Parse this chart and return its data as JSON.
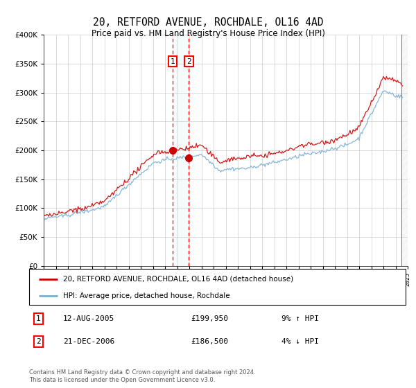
{
  "title": "20, RETFORD AVENUE, ROCHDALE, OL16 4AD",
  "subtitle": "Price paid vs. HM Land Registry's House Price Index (HPI)",
  "ylim": [
    0,
    400000
  ],
  "yticks": [
    0,
    50000,
    100000,
    150000,
    200000,
    250000,
    300000,
    350000,
    400000
  ],
  "legend_line1": "20, RETFORD AVENUE, ROCHDALE, OL16 4AD (detached house)",
  "legend_line2": "HPI: Average price, detached house, Rochdale",
  "transaction1_date": "12-AUG-2005",
  "transaction1_price": "£199,950",
  "transaction1_hpi": "9% ↑ HPI",
  "transaction2_date": "21-DEC-2006",
  "transaction2_price": "£186,500",
  "transaction2_hpi": "4% ↓ HPI",
  "footer": "Contains HM Land Registry data © Crown copyright and database right 2024.\nThis data is licensed under the Open Government Licence v3.0.",
  "line_color_red": "#cc0000",
  "line_color_blue": "#7ab0d4",
  "marker1_x": 2005.62,
  "marker1_y": 199950,
  "marker2_x": 2006.97,
  "marker2_y": 186500,
  "vline1_x": 2005.62,
  "vline2_x": 2006.97,
  "xmin": 1995,
  "xmax": 2025,
  "hatch_start": 2024.5
}
